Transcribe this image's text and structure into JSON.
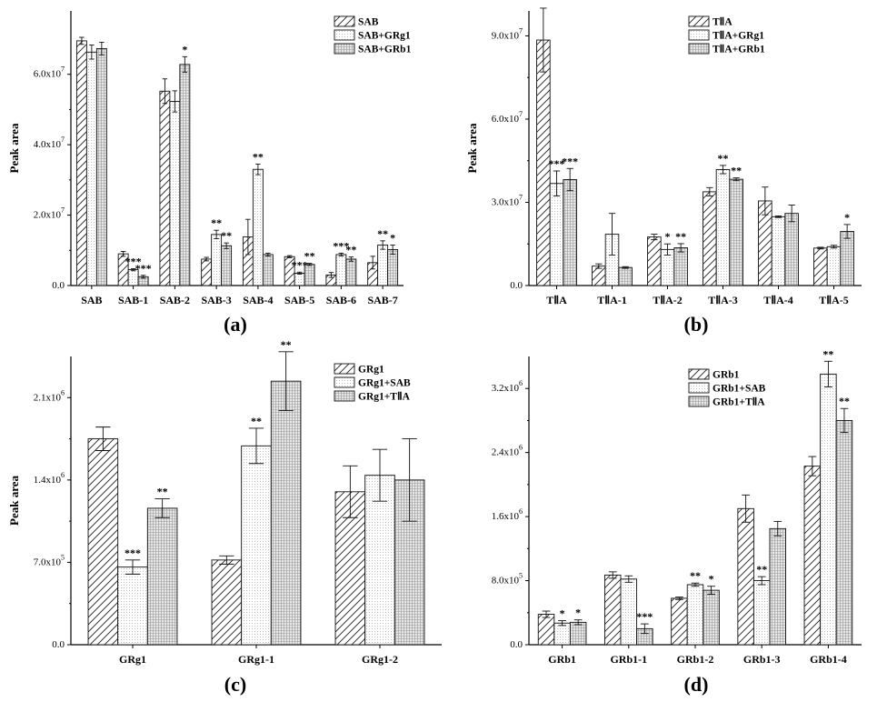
{
  "panels": [
    {
      "label": "(a)"
    },
    {
      "label": "(b)"
    },
    {
      "label": "(c)"
    },
    {
      "label": "(d)"
    }
  ],
  "chart_data": [
    {
      "type": "bar",
      "panel": "(a)",
      "ylabel": "Peak  area",
      "xlabel": "",
      "ylim": [
        0,
        78000000
      ],
      "yticks": [
        0,
        20000000,
        40000000,
        60000000
      ],
      "ytick_labels": [
        "0.0",
        "2.0x10^7",
        "4.0x10^7",
        "6.0x10^7"
      ],
      "categories": [
        "SAB",
        "SAB-1",
        "SAB-2",
        "SAB-3",
        "SAB-4",
        "SAB-5",
        "SAB-6",
        "SAB-7"
      ],
      "legend_position": "top-right",
      "series": [
        {
          "name": "SAB",
          "pattern": "diag",
          "values": [
            69500000,
            9000000,
            55200000,
            7500000,
            13800000,
            8200000,
            3000000,
            6500000
          ],
          "errors": [
            1000000,
            700000,
            3500000,
            500000,
            5000000,
            300000,
            700000,
            1800000
          ]
        },
        {
          "name": "SAB+GRg1",
          "pattern": "dots",
          "values": [
            66300000,
            4500000,
            52300000,
            14500000,
            33000000,
            3500000,
            8800000,
            11500000
          ],
          "errors": [
            2000000,
            300000,
            3000000,
            1200000,
            1500000,
            300000,
            400000,
            1200000
          ]
        },
        {
          "name": "SAB+GRb1",
          "pattern": "grid",
          "values": [
            67300000,
            2500000,
            62800000,
            11300000,
            8800000,
            6000000,
            7500000,
            10200000
          ],
          "errors": [
            1800000,
            400000,
            2200000,
            800000,
            400000,
            300000,
            600000,
            1300000
          ]
        }
      ],
      "annotations": [
        {
          "category": "SAB-1",
          "series": 1,
          "text": "***"
        },
        {
          "category": "SAB-1",
          "series": 2,
          "text": "***"
        },
        {
          "category": "SAB-2",
          "series": 2,
          "text": "*"
        },
        {
          "category": "SAB-3",
          "series": 1,
          "text": "**"
        },
        {
          "category": "SAB-3",
          "series": 2,
          "text": "**"
        },
        {
          "category": "SAB-4",
          "series": 1,
          "text": "**"
        },
        {
          "category": "SAB-5",
          "series": 1,
          "text": "***"
        },
        {
          "category": "SAB-5",
          "series": 2,
          "text": "**"
        },
        {
          "category": "SAB-6",
          "series": 1,
          "text": "***"
        },
        {
          "category": "SAB-6",
          "series": 2,
          "text": "**"
        },
        {
          "category": "SAB-7",
          "series": 1,
          "text": "**"
        },
        {
          "category": "SAB-7",
          "series": 2,
          "text": "*"
        }
      ]
    },
    {
      "type": "bar",
      "panel": "(b)",
      "ylabel": "Peak area",
      "xlabel": "",
      "ylim": [
        0,
        99000000
      ],
      "yticks": [
        0,
        30000000,
        60000000,
        90000000
      ],
      "ytick_labels": [
        "0.0",
        "3.0x10^7",
        "6.0x10^7",
        "9.0x10^7"
      ],
      "categories": [
        "TⅡA",
        "TⅡA-1",
        "TⅡA-2",
        "TⅡA-3",
        "TⅡA-4",
        "TⅡA-5"
      ],
      "legend_position": "top-right",
      "series": [
        {
          "name": "TⅡA",
          "pattern": "diag",
          "values": [
            88500000,
            7000000,
            17500000,
            33800000,
            30500000,
            13500000
          ],
          "errors": [
            11500000,
            800000,
            1000000,
            1500000,
            5000000,
            300000
          ]
        },
        {
          "name": "TⅡA+GRg1",
          "pattern": "dots",
          "values": [
            36800000,
            18500000,
            13000000,
            41800000,
            24800000,
            14000000
          ],
          "errors": [
            4500000,
            7500000,
            2000000,
            1500000,
            300000,
            500000
          ]
        },
        {
          "name": "TⅡA+GRb1",
          "pattern": "grid",
          "values": [
            38200000,
            6500000,
            13600000,
            38300000,
            26000000,
            19500000
          ],
          "errors": [
            4000000,
            300000,
            1500000,
            500000,
            3000000,
            2500000
          ]
        }
      ],
      "annotations": [
        {
          "category": "TⅡA",
          "series": 1,
          "text": "***"
        },
        {
          "category": "TⅡA",
          "series": 2,
          "text": "***"
        },
        {
          "category": "TⅡA-2",
          "series": 1,
          "text": "*"
        },
        {
          "category": "TⅡA-2",
          "series": 2,
          "text": "**"
        },
        {
          "category": "TⅡA-3",
          "series": 1,
          "text": "**"
        },
        {
          "category": "TⅡA-3",
          "series": 2,
          "text": "**"
        },
        {
          "category": "TⅡA-5",
          "series": 2,
          "text": "*"
        }
      ]
    },
    {
      "type": "bar",
      "panel": "(c)",
      "ylabel": "Peak area",
      "xlabel": "",
      "ylim": [
        0,
        2450000
      ],
      "yticks": [
        0,
        700000,
        1400000,
        2100000
      ],
      "ytick_labels": [
        "0.0",
        "7.0x10^5",
        "1.4x10^6",
        "2.1x10^6"
      ],
      "categories": [
        "GRg1",
        "GRg1-1",
        "GRg1-2"
      ],
      "legend_position": "top-right",
      "series": [
        {
          "name": "GRg1",
          "pattern": "diag",
          "values": [
            1750000,
            720000,
            1300000
          ],
          "errors": [
            100000,
            35000,
            220000
          ]
        },
        {
          "name": "GRg1+SAB",
          "pattern": "dots",
          "values": [
            660000,
            1690000,
            1440000
          ],
          "errors": [
            60000,
            150000,
            220000
          ]
        },
        {
          "name": "GRg1+TⅡA",
          "pattern": "grid",
          "values": [
            1160000,
            2240000,
            1400000
          ],
          "errors": [
            80000,
            250000,
            350000
          ]
        }
      ],
      "annotations": [
        {
          "category": "GRg1",
          "series": 1,
          "text": "***"
        },
        {
          "category": "GRg1",
          "series": 2,
          "text": "**"
        },
        {
          "category": "GRg1-1",
          "series": 1,
          "text": "**"
        },
        {
          "category": "GRg1-1",
          "series": 2,
          "text": "**"
        }
      ]
    },
    {
      "type": "bar",
      "panel": "(d)",
      "ylabel": "",
      "xlabel": "",
      "ylim": [
        0,
        3600000
      ],
      "yticks": [
        0,
        800000,
        1600000,
        2400000,
        3200000
      ],
      "ytick_labels": [
        "0.0",
        "8.0x10^5",
        "1.6x10^6",
        "2.4x10^6",
        "3.2x10^6"
      ],
      "categories": [
        "GRb1",
        "GRb1-1",
        "GRb1-2",
        "GRb1-3",
        "GRb1-4"
      ],
      "legend_position": "top-left",
      "series": [
        {
          "name": "GRb1",
          "pattern": "diag",
          "values": [
            380000,
            870000,
            580000,
            1700000,
            2230000
          ],
          "errors": [
            40000,
            40000,
            15000,
            170000,
            120000
          ]
        },
        {
          "name": "GRb1+SAB",
          "pattern": "dots",
          "values": [
            270000,
            820000,
            750000,
            800000,
            3380000
          ],
          "errors": [
            30000,
            40000,
            20000,
            50000,
            160000
          ]
        },
        {
          "name": "GRb1+TⅡA",
          "pattern": "grid",
          "values": [
            280000,
            200000,
            680000,
            1450000,
            2800000
          ],
          "errors": [
            30000,
            60000,
            50000,
            90000,
            150000
          ]
        }
      ],
      "annotations": [
        {
          "category": "GRb1",
          "series": 1,
          "text": "*"
        },
        {
          "category": "GRb1",
          "series": 2,
          "text": "*"
        },
        {
          "category": "GRb1-1",
          "series": 2,
          "text": "***"
        },
        {
          "category": "GRb1-2",
          "series": 1,
          "text": "**"
        },
        {
          "category": "GRb1-2",
          "series": 2,
          "text": "*"
        },
        {
          "category": "GRb1-3",
          "series": 1,
          "text": "**"
        },
        {
          "category": "GRb1-4",
          "series": 1,
          "text": "**"
        },
        {
          "category": "GRb1-4",
          "series": 2,
          "text": "**"
        }
      ]
    }
  ]
}
